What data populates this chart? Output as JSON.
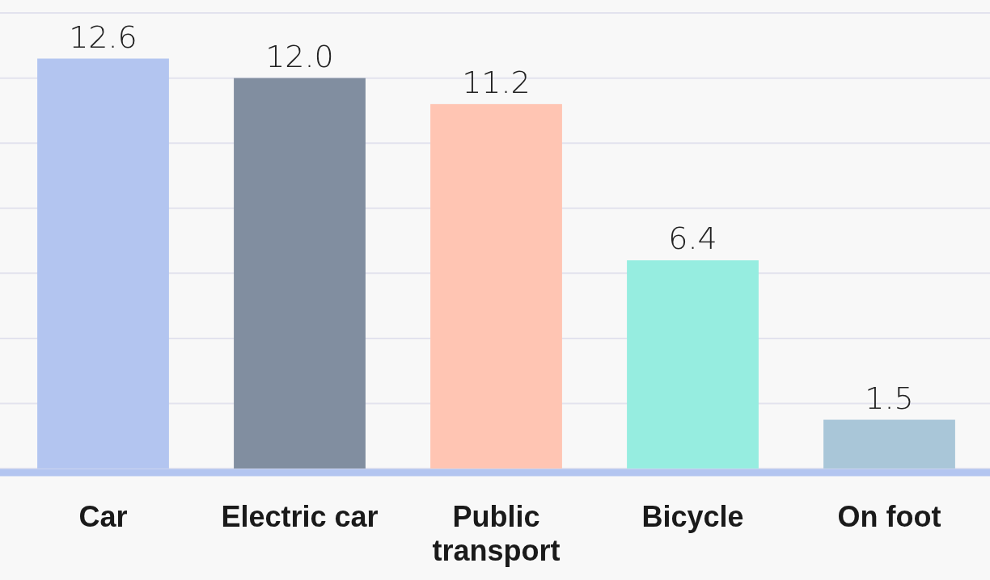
{
  "chart_data": {
    "type": "bar",
    "categories": [
      "Car",
      "Electric car",
      "Public transport",
      "Bicycle",
      "On foot"
    ],
    "values": [
      12.6,
      12.0,
      11.2,
      6.4,
      1.5
    ],
    "colors": [
      "#b3c5f0",
      "#818ea0",
      "#ffc5b3",
      "#96ede0",
      "#a9c6d8"
    ],
    "ylim": [
      0,
      14.4
    ],
    "yticks": [
      {
        "value": 0,
        "label": null
      },
      {
        "value": 2,
        "label": null
      },
      {
        "value": 4,
        "label": null
      },
      {
        "value": 6,
        "label": null
      },
      {
        "value": 8,
        "label": null
      },
      {
        "value": 10,
        "label": null
      },
      {
        "value": 12,
        "label": null
      },
      {
        "value": 14,
        "label": null
      }
    ],
    "value_labels": [
      "12.6",
      "12.0",
      "11.2",
      "6.4",
      "1.5"
    ],
    "grid": "y",
    "tick_labels": "x"
  }
}
